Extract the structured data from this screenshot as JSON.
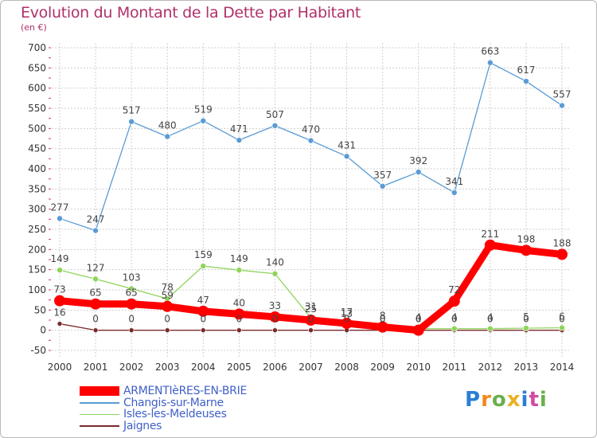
{
  "chart_data": {
    "type": "line",
    "title": "Evolution du Montant de la Dette par Habitant",
    "subtitle": "(en €)",
    "x": [
      "2000",
      "2001",
      "2002",
      "2003",
      "2004",
      "2005",
      "2006",
      "2007",
      "2008",
      "2009",
      "2010",
      "2011",
      "2012",
      "2013",
      "2014"
    ],
    "ylim": [
      -50,
      700
    ],
    "yticks": [
      -50,
      0,
      50,
      100,
      150,
      200,
      250,
      300,
      350,
      400,
      450,
      500,
      550,
      600,
      650,
      700
    ],
    "grid": true,
    "legend_position": "bottom-left",
    "series": [
      {
        "name": "ARMENTIèRES-EN-BRIE",
        "color": "#ff0000",
        "values": [
          73,
          65,
          65,
          59,
          47,
          40,
          33,
          25,
          17,
          8,
          0,
          72,
          211,
          198,
          188
        ],
        "labels": [
          "73",
          "65",
          "65",
          "59",
          "47",
          "40",
          "33",
          "25",
          "17",
          "8",
          "0",
          "72",
          "211",
          "198",
          "188"
        ]
      },
      {
        "name": "Changis-sur-Marne",
        "color": "#5a9bd5",
        "values": [
          277,
          247,
          517,
          480,
          519,
          471,
          507,
          470,
          431,
          357,
          392,
          341,
          663,
          617,
          557
        ],
        "labels": [
          "277",
          "247",
          "517",
          "480",
          "519",
          "471",
          "507",
          "470",
          "431",
          "357",
          "392",
          "341",
          "663",
          "617",
          "557"
        ]
      },
      {
        "name": "Isles-les-Meldeuses",
        "color": "#8fd45a",
        "values": [
          149,
          127,
          103,
          78,
          159,
          149,
          140,
          31,
          13,
          0,
          4,
          4,
          4,
          5,
          6
        ],
        "labels": [
          "149",
          "127",
          "103",
          "78",
          "159",
          "149",
          "140",
          "31",
          "13",
          "0",
          "4",
          "4",
          "4",
          "5",
          "6"
        ]
      },
      {
        "name": "Jaignes",
        "color": "#7a2a2a",
        "values": [
          16,
          0,
          0,
          0,
          0,
          0,
          0,
          0,
          0,
          0,
          0,
          0,
          0,
          0,
          0
        ],
        "labels": [
          "16",
          "0",
          "0",
          "0",
          "0",
          "0",
          "0",
          "0",
          "0",
          "0",
          "0",
          "0",
          "0",
          "0",
          "0"
        ]
      }
    ]
  },
  "logo": {
    "letters": [
      "P",
      "r",
      "o",
      "x",
      "i",
      "t",
      "i"
    ],
    "colors": [
      "#2a7fd4",
      "#f08a1c",
      "#6ab04c",
      "#e8b21f",
      "#2a7fd4",
      "#d44aa0",
      "#6ab04c"
    ]
  }
}
